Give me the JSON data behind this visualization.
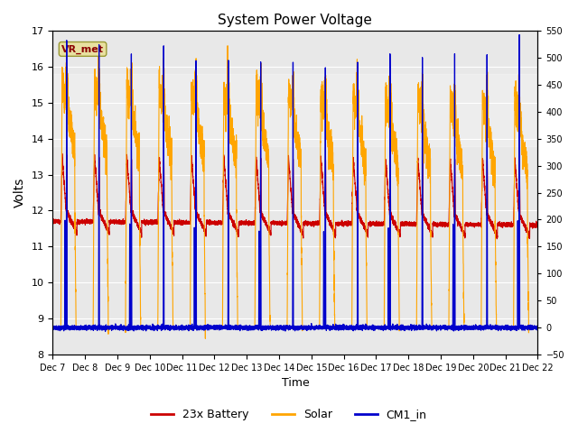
{
  "title": "System Power Voltage",
  "xlabel": "Time",
  "ylabel_left": "Volts",
  "ylim_left": [
    8.0,
    17.0
  ],
  "ylim_right": [
    -50,
    550
  ],
  "yticks_left": [
    8.0,
    9.0,
    10.0,
    11.0,
    12.0,
    13.0,
    14.0,
    15.0,
    16.0,
    17.0
  ],
  "yticks_right": [
    -50,
    0,
    50,
    100,
    150,
    200,
    250,
    300,
    350,
    400,
    450,
    500,
    550
  ],
  "x_labels": [
    "Dec 7",
    "Dec 8",
    "Dec 9",
    "Dec 10",
    "Dec 11",
    "Dec 12",
    "Dec 13",
    "Dec 14",
    "Dec 15",
    "Dec 16",
    "Dec 17",
    "Dec 18",
    "Dec 19",
    "Dec 20",
    "Dec 21",
    "Dec 22"
  ],
  "annotation_text": "VR_met",
  "annotation_color": "#8B0000",
  "annotation_bg": "#E8E0A0",
  "bg_color": "#E8E8E8",
  "line_battery_color": "#CC0000",
  "line_solar_color": "#FFA500",
  "line_cm1_color": "#0000CC",
  "legend_labels": [
    "23x Battery",
    "Solar",
    "CM1_in"
  ],
  "n_days": 15,
  "pts_per_day": 500
}
